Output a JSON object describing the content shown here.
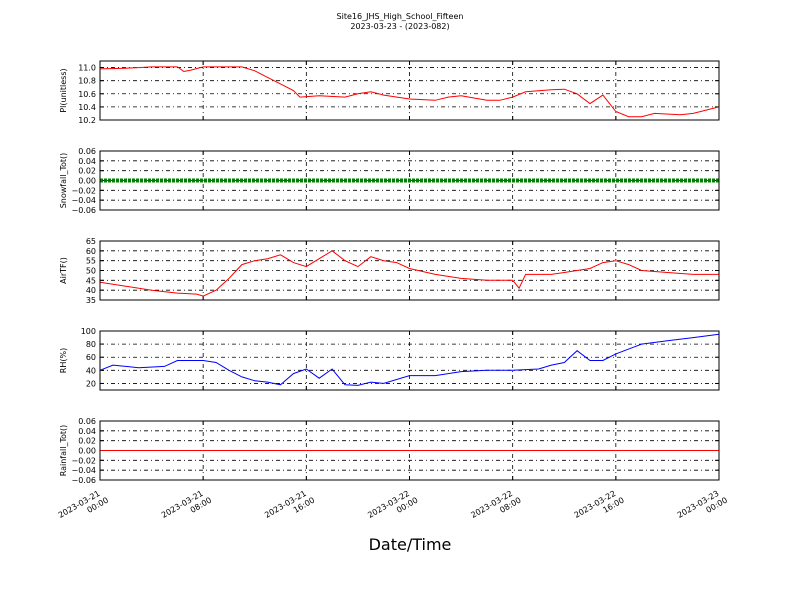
{
  "figure": {
    "title": "Site16_JHS_High_School_Fifteen",
    "subtitle": "2023-03-23 - (2023-082)",
    "xlabel": "Date/Time"
  },
  "x_axis": {
    "range": [
      "2023-03-21 00:00",
      "2023-03-23 00:00"
    ],
    "ticks": [
      {
        "line1": "2023-03-21",
        "line2": "00:00"
      },
      {
        "line1": "2023-03-21",
        "line2": "08:00"
      },
      {
        "line1": "2023-03-21",
        "line2": "16:00"
      },
      {
        "line1": "2023-03-22",
        "line2": "00:00"
      },
      {
        "line1": "2023-03-22",
        "line2": "08:00"
      },
      {
        "line1": "2023-03-22",
        "line2": "16:00"
      },
      {
        "line1": "2023-03-23",
        "line2": "00:00"
      }
    ],
    "grid": true
  },
  "chart_data": [
    {
      "type": "line",
      "ylabel": "Pl(unitless)",
      "ylim": [
        10.2,
        11.1
      ],
      "yticks": [
        10.2,
        10.4,
        10.6,
        10.8,
        11.0
      ],
      "ytick_labels": [
        "10.2",
        "10.4",
        "10.6",
        "10.8",
        "11.0"
      ],
      "color": "#ff0000",
      "series": [
        {
          "x": [
            "2023-03-21 00:00",
            "2023-03-21 02:00",
            "2023-03-21 03:00",
            "2023-03-21 04:00",
            "2023-03-21 06:00",
            "2023-03-21 06:30",
            "2023-03-21 07:00",
            "2023-03-21 08:00",
            "2023-03-21 09:00",
            "2023-03-21 11:00",
            "2023-03-21 12:00",
            "2023-03-21 13:00",
            "2023-03-21 14:00",
            "2023-03-21 15:00",
            "2023-03-21 15:30",
            "2023-03-21 17:00",
            "2023-03-21 19:00",
            "2023-03-21 20:00",
            "2023-03-21 21:00",
            "2023-03-21 22:00",
            "2023-03-22 00:00",
            "2023-03-22 02:00",
            "2023-03-22 03:00",
            "2023-03-22 04:00",
            "2023-03-22 06:00",
            "2023-03-22 07:00",
            "2023-03-22 08:00",
            "2023-03-22 09:00",
            "2023-03-22 11:00",
            "2023-03-22 12:00",
            "2023-03-22 13:00",
            "2023-03-22 14:00",
            "2023-03-22 15:00",
            "2023-03-22 16:00",
            "2023-03-22 17:00",
            "2023-03-22 18:00",
            "2023-03-22 19:00",
            "2023-03-22 21:00",
            "2023-03-22 22:00",
            "2023-03-23 00:00"
          ],
          "values": [
            10.98,
            10.99,
            11.0,
            11.01,
            11.01,
            10.94,
            10.96,
            11.01,
            11.01,
            11.01,
            10.95,
            10.85,
            10.75,
            10.65,
            10.55,
            10.57,
            10.55,
            10.6,
            10.63,
            10.58,
            10.52,
            10.5,
            10.55,
            10.57,
            10.5,
            10.5,
            10.55,
            10.63,
            10.66,
            10.67,
            10.6,
            10.45,
            10.58,
            10.33,
            10.25,
            10.25,
            10.3,
            10.28,
            10.3,
            10.4
          ]
        }
      ]
    },
    {
      "type": "line",
      "ylabel": "Snowfall_Tot()",
      "ylim": [
        -0.06,
        0.06
      ],
      "yticks": [
        -0.06,
        -0.04,
        -0.02,
        0.0,
        0.02,
        0.04,
        0.06
      ],
      "ytick_labels": [
        "−0.06",
        "−0.04",
        "−0.02",
        "0.00",
        "0.02",
        "0.04",
        "0.06"
      ],
      "color": "#008000",
      "series": [
        {
          "x": [
            "2023-03-21 00:00",
            "2023-03-23 00:00"
          ],
          "values": [
            0.0,
            0.0
          ]
        }
      ]
    },
    {
      "type": "line",
      "ylabel": "AirTF()",
      "ylim": [
        35,
        65
      ],
      "yticks": [
        35,
        40,
        45,
        50,
        55,
        60,
        65
      ],
      "ytick_labels": [
        "35",
        "40",
        "45",
        "50",
        "55",
        "60",
        "65"
      ],
      "color": "#ff0000",
      "series": [
        {
          "x": [
            "2023-03-21 00:00",
            "2023-03-21 02:00",
            "2023-03-21 04:00",
            "2023-03-21 06:00",
            "2023-03-21 07:30",
            "2023-03-21 08:00",
            "2023-03-21 09:00",
            "2023-03-21 10:00",
            "2023-03-21 11:00",
            "2023-03-21 12:00",
            "2023-03-21 13:00",
            "2023-03-21 14:00",
            "2023-03-21 15:00",
            "2023-03-21 16:00",
            "2023-03-21 17:00",
            "2023-03-21 18:00",
            "2023-03-21 19:00",
            "2023-03-21 20:00",
            "2023-03-21 21:00",
            "2023-03-21 22:00",
            "2023-03-21 23:00",
            "2023-03-22 00:00",
            "2023-03-22 02:00",
            "2023-03-22 04:00",
            "2023-03-22 06:00",
            "2023-03-22 08:00",
            "2023-03-22 08:30",
            "2023-03-22 09:00",
            "2023-03-22 10:00",
            "2023-03-22 11:00",
            "2023-03-22 12:00",
            "2023-03-22 13:00",
            "2023-03-22 14:00",
            "2023-03-22 15:00",
            "2023-03-22 16:00",
            "2023-03-22 17:00",
            "2023-03-22 18:00",
            "2023-03-22 20:00",
            "2023-03-22 22:00",
            "2023-03-23 00:00"
          ],
          "values": [
            44,
            42,
            40,
            38.5,
            38,
            37,
            40,
            46,
            53,
            55,
            56,
            58,
            54,
            52,
            56,
            60,
            55,
            52,
            57,
            55,
            54,
            51,
            48,
            46,
            45,
            45,
            41,
            48,
            48,
            48,
            49,
            50,
            51,
            54,
            55,
            53,
            50,
            49,
            48,
            48
          ]
        }
      ]
    },
    {
      "type": "line",
      "ylabel": "RH(%)",
      "ylim": [
        10,
        100
      ],
      "yticks": [
        20,
        40,
        60,
        80,
        100
      ],
      "ytick_labels": [
        "20",
        "40",
        "60",
        "80",
        "100"
      ],
      "color": "#0000ff",
      "series": [
        {
          "x": [
            "2023-03-21 00:00",
            "2023-03-21 01:00",
            "2023-03-21 03:00",
            "2023-03-21 05:00",
            "2023-03-21 06:00",
            "2023-03-21 08:00",
            "2023-03-21 09:00",
            "2023-03-21 10:00",
            "2023-03-21 11:00",
            "2023-03-21 12:00",
            "2023-03-21 13:00",
            "2023-03-21 14:00",
            "2023-03-21 15:00",
            "2023-03-21 16:00",
            "2023-03-21 17:00",
            "2023-03-21 18:00",
            "2023-03-21 19:00",
            "2023-03-21 20:00",
            "2023-03-21 21:00",
            "2023-03-21 22:00",
            "2023-03-22 00:00",
            "2023-03-22 02:00",
            "2023-03-22 04:00",
            "2023-03-22 06:00",
            "2023-03-22 08:00",
            "2023-03-22 10:00",
            "2023-03-22 11:00",
            "2023-03-22 12:00",
            "2023-03-22 13:00",
            "2023-03-22 14:00",
            "2023-03-22 15:00",
            "2023-03-22 16:00",
            "2023-03-22 18:00",
            "2023-03-22 20:00",
            "2023-03-22 22:00",
            "2023-03-23 00:00"
          ],
          "values": [
            40,
            48,
            44,
            46,
            55,
            55,
            52,
            40,
            30,
            24,
            22,
            18,
            35,
            42,
            28,
            42,
            18,
            17,
            22,
            20,
            32,
            32,
            38,
            40,
            40,
            42,
            48,
            52,
            70,
            55,
            55,
            65,
            80,
            85,
            90,
            95
          ]
        }
      ]
    },
    {
      "type": "line",
      "ylabel": "Rainfall_Tot()",
      "ylim": [
        -0.06,
        0.06
      ],
      "yticks": [
        -0.06,
        -0.04,
        -0.02,
        0.0,
        0.02,
        0.04,
        0.06
      ],
      "ytick_labels": [
        "−0.06",
        "−0.04",
        "−0.02",
        "0.00",
        "0.02",
        "0.04",
        "0.06"
      ],
      "color": "#ff0000",
      "series": [
        {
          "x": [
            "2023-03-21 00:00",
            "2023-03-23 00:00"
          ],
          "values": [
            0.0,
            0.0
          ]
        }
      ]
    }
  ]
}
